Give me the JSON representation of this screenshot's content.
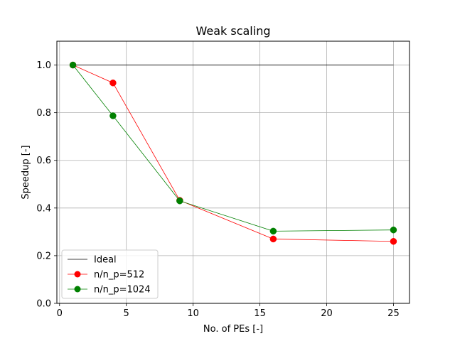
{
  "chart_data": {
    "type": "line",
    "title": "Weak scaling",
    "xlabel": "No. of PEs [-]",
    "ylabel": "Speedup [-]",
    "xlim": [
      -0.2,
      26.2
    ],
    "ylim": [
      0.0,
      1.1
    ],
    "xticks": [
      0,
      5,
      10,
      15,
      20,
      25
    ],
    "yticks": [
      0.0,
      0.2,
      0.4,
      0.6,
      0.8,
      1.0
    ],
    "xtick_labels": [
      "0",
      "5",
      "10",
      "15",
      "20",
      "25"
    ],
    "ytick_labels": [
      "0.0",
      "0.2",
      "0.4",
      "0.6",
      "0.8",
      "1.0"
    ],
    "grid": true,
    "legend_position": "lower-left",
    "series": [
      {
        "name": "Ideal",
        "color": "#000000",
        "marker": false,
        "x": [
          1,
          25
        ],
        "y": [
          1.0,
          1.0
        ]
      },
      {
        "name": "n/n_p=512",
        "color": "#ff0000",
        "marker": true,
        "x": [
          1,
          4,
          9,
          16,
          25
        ],
        "y": [
          1.0,
          0.925,
          0.432,
          0.27,
          0.26
        ]
      },
      {
        "name": "n/n_p=1024",
        "color": "#008000",
        "marker": true,
        "x": [
          1,
          4,
          9,
          16,
          25
        ],
        "y": [
          1.0,
          0.787,
          0.43,
          0.303,
          0.308
        ]
      }
    ]
  }
}
